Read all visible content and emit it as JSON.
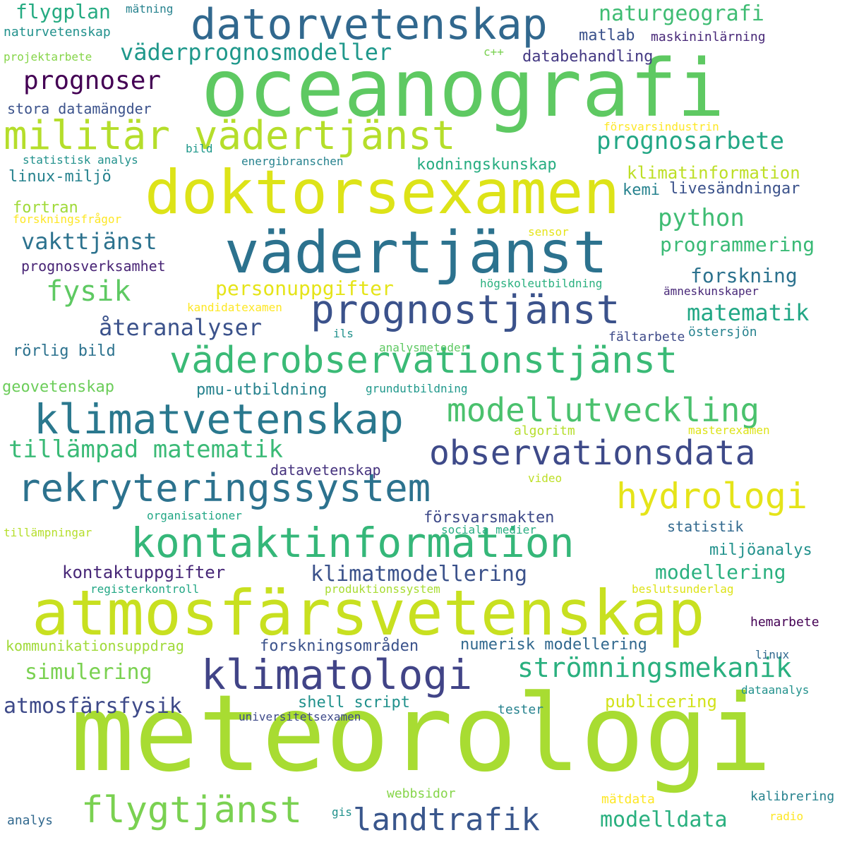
{
  "words": [
    {
      "text": "meteorologi",
      "color": "#a8dc32"
    },
    {
      "text": "oceanografi",
      "color": "#5ec962"
    },
    {
      "text": "atmosfärsvetenskap",
      "color": "#c8e020"
    },
    {
      "text": "doktorsexamen",
      "color": "#dde318"
    },
    {
      "text": "vädertjänst",
      "color": "#2c728e"
    },
    {
      "text": "datorvetenskap",
      "color": "#31688e"
    },
    {
      "text": "militär vädertjänst",
      "color": "#b5de2b"
    },
    {
      "text": "prognostjänst",
      "color": "#3b528b"
    },
    {
      "text": "väderobservationstjänst",
      "color": "#3aba76"
    },
    {
      "text": "klimatvetenskap",
      "color": "#2a788e"
    },
    {
      "text": "rekryteringssystem",
      "color": "#2c728e"
    },
    {
      "text": "kontaktinformation",
      "color": "#35b779"
    },
    {
      "text": "observationsdata",
      "color": "#3e4a89"
    },
    {
      "text": "modellutveckling",
      "color": "#4ac16d"
    },
    {
      "text": "klimatologi",
      "color": "#414487"
    },
    {
      "text": "hydrologi",
      "color": "#e5e419"
    },
    {
      "text": "flygtjänst",
      "color": "#7ad151"
    },
    {
      "text": "landtrafik",
      "color": "#39568c"
    },
    {
      "text": "tillämpad matematik",
      "color": "#3aba76"
    },
    {
      "text": "strömningsmekanik",
      "color": "#2ab07f"
    },
    {
      "text": "fysik",
      "color": "#5ec962"
    },
    {
      "text": "naturgeografi",
      "color": "#3fbc73"
    },
    {
      "text": "väderprognosmodeller",
      "color": "#1f988b"
    },
    {
      "text": "prognosarbete",
      "color": "#22a785"
    },
    {
      "text": "prognoser",
      "color": "#440154"
    },
    {
      "text": "flygplan",
      "color": "#25ab82"
    },
    {
      "text": "python",
      "color": "#3fbc73"
    },
    {
      "text": "programmering",
      "color": "#3aba76"
    },
    {
      "text": "forskning",
      "color": "#2c728e"
    },
    {
      "text": "matematik",
      "color": "#22a785"
    },
    {
      "text": "personuppgifter",
      "color": "#e5e419"
    },
    {
      "text": "återanalyser",
      "color": "#3b528b"
    },
    {
      "text": "vakttjänst",
      "color": "#2c728e"
    },
    {
      "text": "modelldata",
      "color": "#2ab07f"
    },
    {
      "text": "atmosfärsfysik",
      "color": "#3e4a89"
    },
    {
      "text": "klimatmodellering",
      "color": "#3b528b"
    },
    {
      "text": "modellering",
      "color": "#2ab07f"
    },
    {
      "text": "simulering",
      "color": "#7ad151"
    },
    {
      "text": "kontaktuppgifter",
      "color": "#482878"
    },
    {
      "text": "publicering",
      "color": "#d2e21b"
    },
    {
      "text": "matlab",
      "color": "#3b528b"
    },
    {
      "text": "databehandling",
      "color": "#443983"
    },
    {
      "text": "kodningskunskap",
      "color": "#27ad81"
    },
    {
      "text": "klimatinformation",
      "color": "#bddf26"
    },
    {
      "text": "livesändningar",
      "color": "#3b528b"
    },
    {
      "text": "kemi",
      "color": "#26828e"
    },
    {
      "text": "fortran",
      "color": "#a0da39"
    },
    {
      "text": "linux-miljö",
      "color": "#26828e"
    },
    {
      "text": "stora datamängder",
      "color": "#3b528b"
    },
    {
      "text": "prognosverksamhet",
      "color": "#482475"
    },
    {
      "text": "rörlig bild",
      "color": "#2c728e"
    },
    {
      "text": "geovetenskap",
      "color": "#6ccd5a"
    },
    {
      "text": "pmu-utbildning",
      "color": "#26828e"
    },
    {
      "text": "datavetenskap",
      "color": "#46337e"
    },
    {
      "text": "försvarsmakten",
      "color": "#3e4a89"
    },
    {
      "text": "statistik",
      "color": "#31688e"
    },
    {
      "text": "miljöanalys",
      "color": "#21918c"
    },
    {
      "text": "numerisk modellering",
      "color": "#31688e"
    },
    {
      "text": "forskningsområden",
      "color": "#3b528b"
    },
    {
      "text": "kommunikationsuppdrag",
      "color": "#a0da39"
    },
    {
      "text": "shell script",
      "color": "#21918c"
    },
    {
      "text": "hemarbete",
      "color": "#440154"
    },
    {
      "text": "naturvetenskap",
      "color": "#21918c"
    },
    {
      "text": "mätning",
      "color": "#26828e"
    },
    {
      "text": "maskininlärning",
      "color": "#482878"
    },
    {
      "text": "projektarbete",
      "color": "#86d549"
    },
    {
      "text": "c++",
      "color": "#7ad151"
    },
    {
      "text": "försvarsindustrin",
      "color": "#fde725"
    },
    {
      "text": "statistisk analys",
      "color": "#21918c"
    },
    {
      "text": "bild",
      "color": "#1f988b"
    },
    {
      "text": "energibranschen",
      "color": "#26828e"
    },
    {
      "text": "forskningsfrågor",
      "color": "#fde725"
    },
    {
      "text": "sensor",
      "color": "#e5e419"
    },
    {
      "text": "högskoleutbildning",
      "color": "#2ab07f"
    },
    {
      "text": "ämneskunskaper",
      "color": "#482878"
    },
    {
      "text": "kandidatexamen",
      "color": "#fde725"
    },
    {
      "text": "fältarbete",
      "color": "#3e4a89"
    },
    {
      "text": "ils",
      "color": "#21918c"
    },
    {
      "text": "östersjön",
      "color": "#26828e"
    },
    {
      "text": "analysmetoder",
      "color": "#5ec962"
    },
    {
      "text": "grundutbildning",
      "color": "#1f988b"
    },
    {
      "text": "algoritm",
      "color": "#b5de2b"
    },
    {
      "text": "masterexamen",
      "color": "#dde318"
    },
    {
      "text": "video",
      "color": "#bddf26"
    },
    {
      "text": "organisationer",
      "color": "#22a785"
    },
    {
      "text": "tillämpningar",
      "color": "#b5de2b"
    },
    {
      "text": "sociala medier",
      "color": "#27ad81"
    },
    {
      "text": "registerkontroll",
      "color": "#22a785"
    },
    {
      "text": "produktionssystem",
      "color": "#a8dc32"
    },
    {
      "text": "beslutsunderlag",
      "color": "#dde318"
    },
    {
      "text": "linux",
      "color": "#31688e"
    },
    {
      "text": "dataanalys",
      "color": "#21918c"
    },
    {
      "text": "tester",
      "color": "#26828e"
    },
    {
      "text": "universitetsexamen",
      "color": "#3e4a89"
    },
    {
      "text": "webbsidor",
      "color": "#86d549"
    },
    {
      "text": "mätdata",
      "color": "#fde725"
    },
    {
      "text": "kalibrering",
      "color": "#26828e"
    },
    {
      "text": "radio",
      "color": "#fde725"
    },
    {
      "text": "gis",
      "color": "#21918c"
    },
    {
      "text": "analys",
      "color": "#31688e"
    }
  ]
}
